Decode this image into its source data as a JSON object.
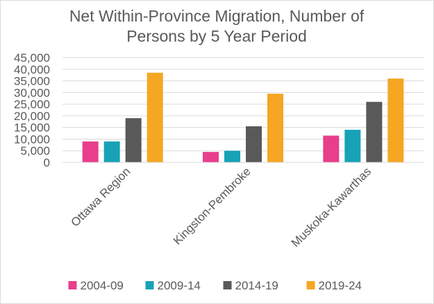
{
  "chart_data": {
    "type": "bar",
    "title_lines": [
      "Net Within-Province Migration, Number of",
      "Persons by 5 Year Period"
    ],
    "categories": [
      "Ottawa Region",
      "Kingston-Pembroke",
      "Muskoka-Kawarthas"
    ],
    "series": [
      {
        "name": "2004-09",
        "color": "#e83e8c",
        "values": [
          9000,
          4500,
          11500
        ]
      },
      {
        "name": "2009-14",
        "color": "#17a2b8",
        "values": [
          9000,
          5000,
          14000
        ]
      },
      {
        "name": "2014-19",
        "color": "#595959",
        "values": [
          19000,
          15500,
          26000
        ]
      },
      {
        "name": "2019-24",
        "color": "#f5a623",
        "values": [
          38500,
          29500,
          36000
        ]
      }
    ],
    "yticks": [
      "0",
      "5,000",
      "10,000",
      "15,000",
      "20,000",
      "25,000",
      "30,000",
      "35,000",
      "40,000",
      "45,000"
    ],
    "ylim": [
      0,
      45000
    ],
    "xlabel": "",
    "ylabel": "",
    "grid": true,
    "legend_position": "bottom"
  }
}
